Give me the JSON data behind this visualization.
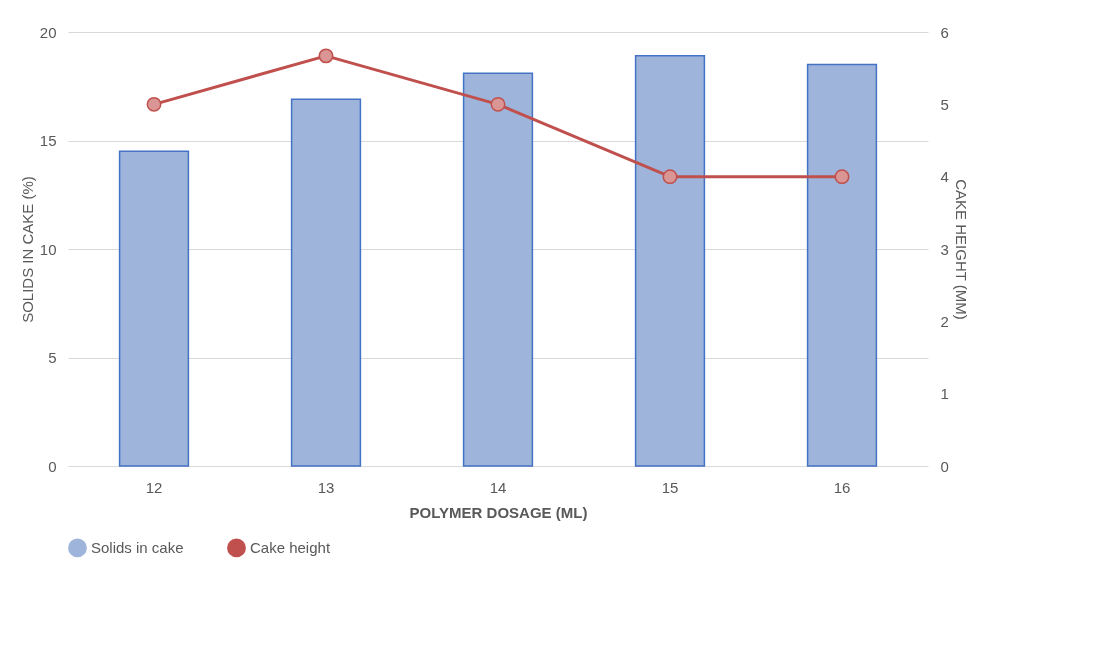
{
  "chart_data": {
    "type": "bar",
    "categories": [
      "12",
      "13",
      "14",
      "15",
      "16"
    ],
    "xlabel": "POLYMER DOSAGE (ML)",
    "ylabel": "SOLIDS IN CAKE (%)",
    "y2label": "CAKE HEIGHT (MM)",
    "series": [
      {
        "name": "Solids in cake",
        "color": "#9fb4da",
        "values": [
          14.5,
          16.9,
          18.1,
          18.9,
          18.5
        ]
      },
      {
        "name": "Cake height",
        "type": "line",
        "axis": "y2",
        "color": "#c0504d",
        "values": [
          5,
          5.67,
          5,
          4,
          4
        ]
      }
    ],
    "ylim": [
      0,
      20
    ],
    "yticks": [
      0,
      5,
      10,
      15,
      20
    ],
    "y2lim": [
      0,
      6
    ],
    "y2ticks": [
      0,
      1,
      2,
      3,
      4,
      5,
      6
    ],
    "grid": "y",
    "legend": "bottom",
    "marker": "circle",
    "line_style": "solid"
  }
}
